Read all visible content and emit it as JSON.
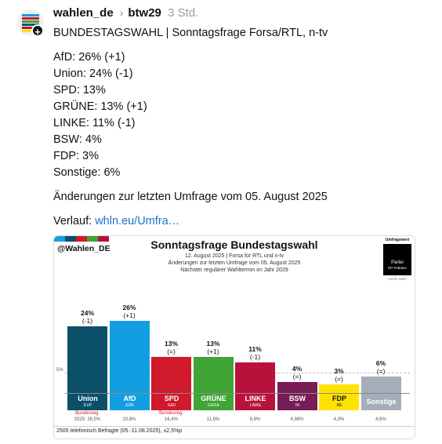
{
  "post": {
    "username": "wahlen_de",
    "hashtag": "btw29",
    "time": "3 Std.",
    "title": "BUNDESTAGSWAHL | Sonntagsfrage Forsa/RTL, n-tv",
    "results": [
      "AfD: 26% (+1)",
      "Union: 24% (-1)",
      "SPD: 13%",
      "GRÜNE: 13% (+1)",
      "LINKE: 11% (-1)",
      "BSW: 4%",
      "FDP: 3%",
      "Sonstige: 6%"
    ],
    "changes_note": "Änderungen zur letzten Umfrage vom 05. August 2025",
    "verlauf_label": "Verlauf:",
    "verlauf_link": "whln.eu/Umfra…"
  },
  "card": {
    "handle": "@Wahlen_DE",
    "title": "Sonntagsfrage Bundestagswahl",
    "sub1": "12. August 2025 | Forsa für RTL und n-tv",
    "sub2": "Änderungen zur letzten Umfrage vom 05. August 2025",
    "sub3": "Nächster regulärer Wahltermin im Jahr 2029",
    "umfragewert": "Umfragewert",
    "partei": "Partei",
    "ep_fraktion": "EP-Fraktion",
    "letzte_wahl": "Letzte Wahl",
    "five_label": "5%",
    "footer": "2505 telefonisch Befragte (05.-11.08.2025), ±2,5%p"
  },
  "chart_data": {
    "type": "bar",
    "categories": [
      "Union",
      "AfD",
      "SPD",
      "GRÜNE",
      "LINKE",
      "BSW",
      "FDP",
      "Sonstige"
    ],
    "values": [
      24,
      26,
      13,
      13,
      11,
      4,
      3,
      6
    ],
    "changes": [
      "(-1)",
      "(+1)",
      "(=)",
      "(+1)",
      "(-1)",
      "(=)",
      "(=)",
      "(=)"
    ],
    "groups": [
      "EVP",
      "ESN",
      "S&D",
      "G/EFA",
      "LINKE",
      "NI",
      "RE",
      ""
    ],
    "government": [
      "Bundesreg.",
      "",
      "Bundesreg.",
      "",
      "",
      "",
      "",
      ""
    ],
    "last_election": [
      "2025: 28,5%",
      "20,8%",
      "16,4%",
      "11,6%",
      "8,8%",
      "4,98%",
      "4,3%",
      "4,6%"
    ],
    "colors": [
      "#0b5068",
      "#129fe1",
      "#d0192b",
      "#3fa535",
      "#b8123c",
      "#771c55",
      "#ffe300",
      "#a3aeb9"
    ],
    "name_text_colors": [
      "#ffffff",
      "#ffffff",
      "#ffffff",
      "#ffffff",
      "#ffffff",
      "#ffffff",
      "#111111",
      "#ffffff"
    ],
    "ylim": [
      0,
      30
    ]
  }
}
